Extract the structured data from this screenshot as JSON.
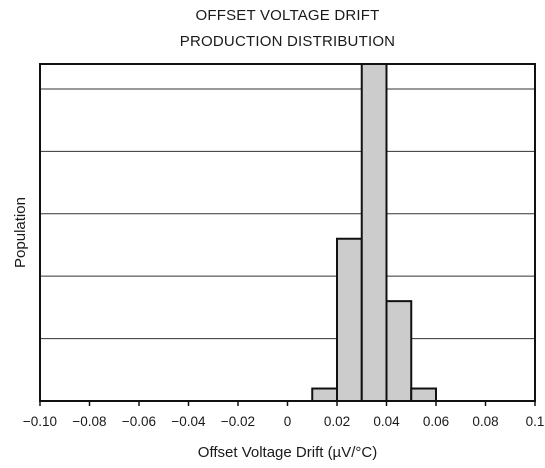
{
  "chart_data": {
    "type": "bar",
    "title_lines": [
      "OFFSET VOLTAGE DRIFT",
      "PRODUCTION DISTRIBUTION"
    ],
    "xlabel": "Offset Voltage Drift (µV/°C)",
    "ylabel": "Population",
    "xlim": [
      -0.1,
      0.1
    ],
    "ylim": [
      0,
      5.4
    ],
    "x_tick_labels": [
      "−0.10",
      "−0.08",
      "−0.06",
      "−0.04",
      "−0.02",
      "0",
      "0.02",
      "0.04",
      "0.06",
      "0.08",
      "0.1"
    ],
    "x_ticks": [
      -0.1,
      -0.08,
      -0.06,
      -0.04,
      -0.02,
      0,
      0.02,
      0.04,
      0.06,
      0.08,
      0.1
    ],
    "y_gridlines": [
      1,
      2,
      3,
      4,
      5
    ],
    "bin_width": 0.01,
    "bars": [
      {
        "x0": 0.01,
        "x1": 0.02,
        "value": 0.2
      },
      {
        "x0": 0.02,
        "x1": 0.03,
        "value": 2.6
      },
      {
        "x0": 0.03,
        "x1": 0.04,
        "value": 5.4
      },
      {
        "x0": 0.04,
        "x1": 0.05,
        "value": 1.6
      },
      {
        "x0": 0.05,
        "x1": 0.06,
        "value": 0.2
      }
    ],
    "grid": true,
    "bar_fill": "#cccccc",
    "bar_stroke": "#111111"
  }
}
